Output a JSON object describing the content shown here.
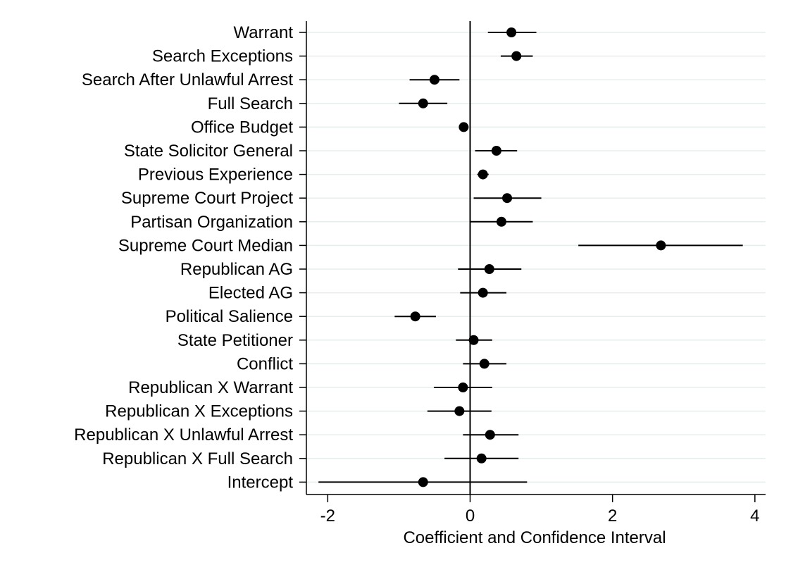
{
  "chart_data": {
    "type": "scatter",
    "subtype": "coefficient-plot",
    "title": "",
    "xlabel": "Coefficient and Confidence Interval",
    "ylabel": "",
    "xlim": [
      -2.3,
      4.15
    ],
    "xticks": [
      -2,
      0,
      2,
      4
    ],
    "xtick_labels": [
      "-2",
      "0",
      "2",
      "4"
    ],
    "grid": "horizontal",
    "reference_line_x": 0,
    "colors": {
      "marker": "#000000",
      "grid": "#e6eded",
      "axis": "#000000"
    },
    "categories": [
      "Warrant",
      "Search Exceptions",
      "Search After Unlawful Arrest",
      "Full Search",
      "Office Budget",
      "State Solicitor General",
      "Previous Experience",
      "Supreme Court Project",
      "Partisan Organization",
      "Supreme Court Median",
      "Republican AG",
      "Elected AG",
      "Political Salience",
      "State Petitioner",
      "Conflict",
      "Republican X Warrant",
      "Republican X Exceptions",
      "Republican X Unlawful Arrest",
      "Republican X Full Search",
      "Intercept"
    ],
    "series": [
      {
        "estimate": [
          0.58,
          0.65,
          -0.5,
          -0.66,
          -0.09,
          0.37,
          0.18,
          0.52,
          0.44,
          2.68,
          0.27,
          0.18,
          -0.77,
          0.05,
          0.2,
          -0.1,
          -0.15,
          0.28,
          0.16,
          -0.66
        ],
        "ci_low": [
          0.25,
          0.43,
          -0.85,
          -1.0,
          -0.15,
          0.07,
          0.1,
          0.05,
          0.0,
          1.52,
          -0.17,
          -0.14,
          -1.06,
          -0.2,
          -0.1,
          -0.51,
          -0.6,
          -0.1,
          -0.36,
          -2.13
        ],
        "ci_high": [
          0.93,
          0.88,
          -0.15,
          -0.32,
          -0.03,
          0.66,
          0.26,
          1.0,
          0.88,
          3.83,
          0.72,
          0.51,
          -0.48,
          0.31,
          0.51,
          0.31,
          0.3,
          0.68,
          0.68,
          0.8
        ]
      }
    ]
  }
}
